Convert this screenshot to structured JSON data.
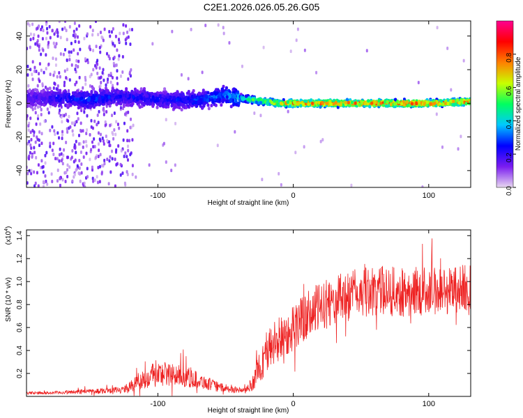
{
  "title": "C2E1.2026.026.05.26.G05",
  "chart_data": [
    {
      "type": "heatmap",
      "title": "C2E1.2026.026.05.26.G05",
      "xlabel": "Height of straight line (km)",
      "ylabel": "Frequency (Hz)",
      "xlim": [
        -197,
        131
      ],
      "ylim": [
        -50,
        49
      ],
      "xticks": [
        -100,
        0,
        100
      ],
      "xtick_labels": [
        "-100",
        "0",
        "100"
      ],
      "yticks": [
        40,
        20,
        0,
        -20,
        -40
      ],
      "ytick_labels": [
        "40",
        "20",
        "0",
        "-20",
        "-40"
      ],
      "colorbar": {
        "label": "Normalized spectral amplitude",
        "range": [
          0,
          1
        ],
        "ticks": [
          0,
          0.2,
          0.4,
          0.6,
          0.8
        ],
        "tick_labels": [
          "0.0",
          "0.2",
          "0.4",
          "0.6",
          "0.8"
        ],
        "colormap": [
          "#e8d8f0",
          "#7a1cf0",
          "#0000ff",
          "#00c8ff",
          "#00ff60",
          "#c8ff00",
          "#ff8000",
          "#ff0000",
          "#ff0090"
        ]
      },
      "ridge": {
        "x": [
          -190,
          -170,
          -150,
          -130,
          -110,
          -90,
          -70,
          -50,
          -40,
          -30,
          -20,
          -10,
          0,
          20,
          40,
          60,
          80,
          100,
          130
        ],
        "freq": [
          3,
          3,
          2,
          4,
          3,
          2,
          2,
          5,
          3,
          2,
          1,
          0,
          0,
          0,
          0,
          0,
          0,
          0,
          1
        ],
        "amplitude": [
          0.2,
          0.25,
          0.3,
          0.25,
          0.25,
          0.25,
          0.3,
          0.35,
          0.45,
          0.55,
          0.65,
          0.75,
          0.8,
          0.82,
          0.8,
          0.82,
          0.85,
          0.82,
          0.8
        ]
      }
    },
    {
      "type": "line",
      "xlabel": "Height of straight line (km)",
      "ylabel": "SNR (10 * v/v)",
      "y_multiplier": "(x10",
      "y_multiplier_exp": "4",
      "y_multiplier_close": ")",
      "xlim": [
        -197,
        131
      ],
      "ylim": [
        0,
        1.45
      ],
      "xticks": [
        -100,
        0,
        100
      ],
      "xtick_labels": [
        "-100",
        "0",
        "100"
      ],
      "yticks": [
        0.2,
        0.4,
        0.6,
        0.8,
        1.0,
        1.2,
        1.4
      ],
      "ytick_labels": [
        "0.2",
        "0.4",
        "0.6",
        "0.8",
        "1.0",
        "1.2",
        "1.4"
      ],
      "series": [
        {
          "name": "SNR",
          "color": "#ee2222",
          "x": [
            -197,
            -180,
            -160,
            -140,
            -125,
            -115,
            -105,
            -95,
            -85,
            -75,
            -65,
            -55,
            -45,
            -35,
            -30,
            -25,
            -20,
            -15,
            -10,
            -5,
            0,
            10,
            20,
            30,
            40,
            50,
            60,
            70,
            80,
            90,
            100,
            110,
            120,
            131
          ],
          "y": [
            0.03,
            0.03,
            0.04,
            0.05,
            0.06,
            0.12,
            0.18,
            0.2,
            0.18,
            0.16,
            0.12,
            0.08,
            0.06,
            0.05,
            0.12,
            0.25,
            0.38,
            0.45,
            0.5,
            0.55,
            0.6,
            0.7,
            0.78,
            0.83,
            0.88,
            0.9,
            0.92,
            0.92,
            0.9,
            0.92,
            0.92,
            0.92,
            0.93,
            0.96
          ],
          "noise": [
            0.01,
            0.01,
            0.015,
            0.02,
            0.025,
            0.06,
            0.09,
            0.09,
            0.08,
            0.07,
            0.05,
            0.035,
            0.025,
            0.02,
            0.06,
            0.12,
            0.16,
            0.17,
            0.17,
            0.17,
            0.17,
            0.18,
            0.18,
            0.18,
            0.18,
            0.18,
            0.18,
            0.18,
            0.18,
            0.18,
            0.18,
            0.18,
            0.18,
            0.18
          ]
        }
      ]
    }
  ]
}
